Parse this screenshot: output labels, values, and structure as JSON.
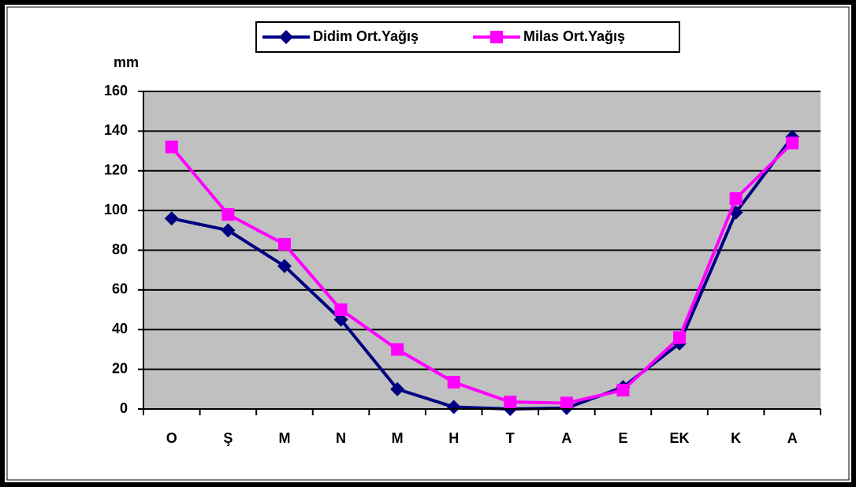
{
  "chart_data": {
    "type": "line",
    "y_label": "mm",
    "categories": [
      "O",
      "Ş",
      "M",
      "N",
      "M",
      "H",
      "T",
      "A",
      "E",
      "EK",
      "K",
      "A"
    ],
    "series": [
      {
        "name": "Didim Ort.Yağış",
        "color": "#000080",
        "marker": "diamond",
        "values": [
          96,
          90,
          72,
          45,
          10,
          1,
          0,
          0.5,
          11,
          33,
          99,
          137
        ]
      },
      {
        "name": "Milas Ort.Yağış",
        "color": "#ff00ff",
        "marker": "square",
        "values": [
          132,
          98,
          83,
          50,
          30,
          13.5,
          3.5,
          3,
          9.5,
          36,
          106,
          134
        ]
      }
    ],
    "ylim": [
      0,
      160
    ],
    "yticks": [
      0,
      20,
      40,
      60,
      80,
      100,
      120,
      140,
      160
    ],
    "grid": true,
    "legend": "top"
  }
}
